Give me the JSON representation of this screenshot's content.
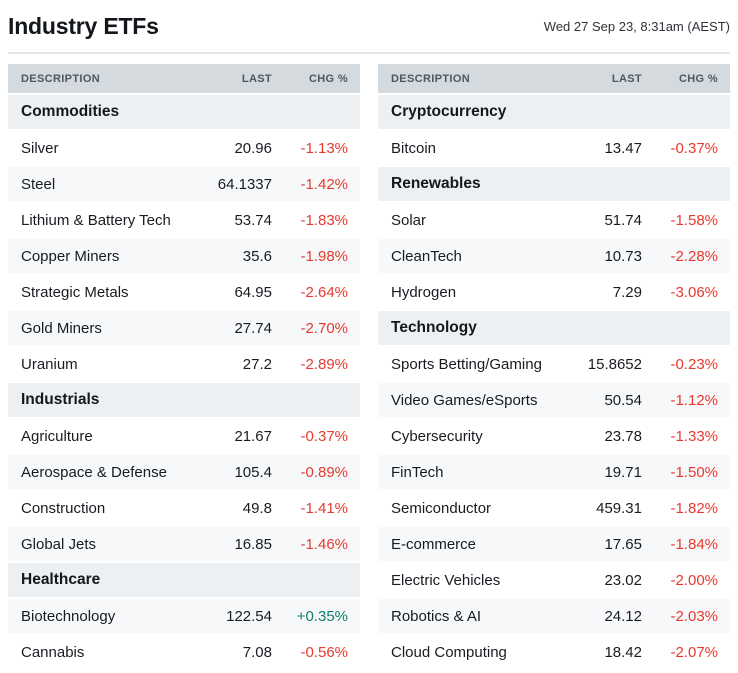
{
  "header": {
    "title": "Industry ETFs",
    "datetime": "Wed 27 Sep 23, 8:31am (AEST)"
  },
  "columns": {
    "description": "DESCRIPTION",
    "last": "LAST",
    "chg": "CHG %"
  },
  "colors": {
    "negative_change": "#e8392e",
    "positive_change": "#0e7f6e",
    "column_header_bg": "#d4dade",
    "section_row_bg": "#edf0f2",
    "stripe_row_bg": "#f7f8f9"
  },
  "tables": [
    {
      "name": "left",
      "rows": [
        {
          "type": "section",
          "label": "Commodities"
        },
        {
          "type": "data",
          "label": "Silver",
          "last": "20.96",
          "chg": "-1.13%",
          "direction": "down"
        },
        {
          "type": "data",
          "label": "Steel",
          "last": "64.1337",
          "chg": "-1.42%",
          "direction": "down"
        },
        {
          "type": "data",
          "label": "Lithium & Battery Tech",
          "last": "53.74",
          "chg": "-1.83%",
          "direction": "down"
        },
        {
          "type": "data",
          "label": "Copper Miners",
          "last": "35.6",
          "chg": "-1.98%",
          "direction": "down"
        },
        {
          "type": "data",
          "label": "Strategic Metals",
          "last": "64.95",
          "chg": "-2.64%",
          "direction": "down"
        },
        {
          "type": "data",
          "label": "Gold Miners",
          "last": "27.74",
          "chg": "-2.70%",
          "direction": "down"
        },
        {
          "type": "data",
          "label": "Uranium",
          "last": "27.2",
          "chg": "-2.89%",
          "direction": "down"
        },
        {
          "type": "section",
          "label": "Industrials"
        },
        {
          "type": "data",
          "label": "Agriculture",
          "last": "21.67",
          "chg": "-0.37%",
          "direction": "down"
        },
        {
          "type": "data",
          "label": "Aerospace & Defense",
          "last": "105.4",
          "chg": "-0.89%",
          "direction": "down"
        },
        {
          "type": "data",
          "label": "Construction",
          "last": "49.8",
          "chg": "-1.41%",
          "direction": "down"
        },
        {
          "type": "data",
          "label": "Global Jets",
          "last": "16.85",
          "chg": "-1.46%",
          "direction": "down"
        },
        {
          "type": "section",
          "label": "Healthcare"
        },
        {
          "type": "data",
          "label": "Biotechnology",
          "last": "122.54",
          "chg": "+0.35%",
          "direction": "up"
        },
        {
          "type": "data",
          "label": "Cannabis",
          "last": "7.08",
          "chg": "-0.56%",
          "direction": "down"
        }
      ]
    },
    {
      "name": "right",
      "rows": [
        {
          "type": "section",
          "label": "Cryptocurrency"
        },
        {
          "type": "data",
          "label": "Bitcoin",
          "last": "13.47",
          "chg": "-0.37%",
          "direction": "down"
        },
        {
          "type": "section",
          "label": "Renewables"
        },
        {
          "type": "data",
          "label": "Solar",
          "last": "51.74",
          "chg": "-1.58%",
          "direction": "down"
        },
        {
          "type": "data",
          "label": "CleanTech",
          "last": "10.73",
          "chg": "-2.28%",
          "direction": "down"
        },
        {
          "type": "data",
          "label": "Hydrogen",
          "last": "7.29",
          "chg": "-3.06%",
          "direction": "down"
        },
        {
          "type": "section",
          "label": "Technology"
        },
        {
          "type": "data",
          "label": "Sports Betting/Gaming",
          "last": "15.8652",
          "chg": "-0.23%",
          "direction": "down"
        },
        {
          "type": "data",
          "label": "Video Games/eSports",
          "last": "50.54",
          "chg": "-1.12%",
          "direction": "down"
        },
        {
          "type": "data",
          "label": "Cybersecurity",
          "last": "23.78",
          "chg": "-1.33%",
          "direction": "down"
        },
        {
          "type": "data",
          "label": "FinTech",
          "last": "19.71",
          "chg": "-1.50%",
          "direction": "down"
        },
        {
          "type": "data",
          "label": "Semiconductor",
          "last": "459.31",
          "chg": "-1.82%",
          "direction": "down"
        },
        {
          "type": "data",
          "label": "E-commerce",
          "last": "17.65",
          "chg": "-1.84%",
          "direction": "down"
        },
        {
          "type": "data",
          "label": "Electric Vehicles",
          "last": "23.02",
          "chg": "-2.00%",
          "direction": "down"
        },
        {
          "type": "data",
          "label": "Robotics & AI",
          "last": "24.12",
          "chg": "-2.03%",
          "direction": "down"
        },
        {
          "type": "data",
          "label": "Cloud Computing",
          "last": "18.42",
          "chg": "-2.07%",
          "direction": "down"
        }
      ]
    }
  ]
}
